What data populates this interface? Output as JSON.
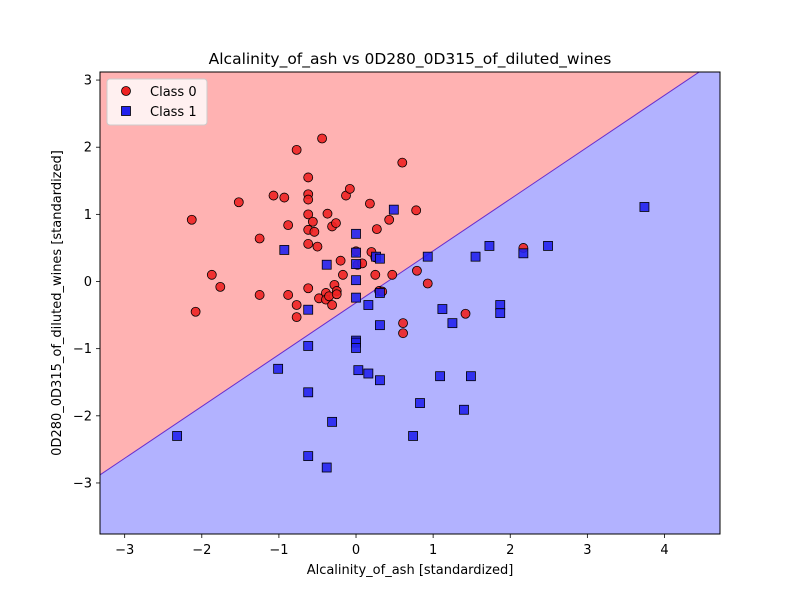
{
  "chart_data": {
    "type": "scatter",
    "title": "Alcalinity_of_ash vs 0D280_0D315_of_diluted_wines",
    "xlabel": "Alcalinity_of_ash [standardized]",
    "ylabel": "0D280_0D315_of_diluted_wines [standardized]",
    "xlim": [
      -3.32,
      4.72
    ],
    "ylim": [
      -3.76,
      3.12
    ],
    "x_ticks": [
      -3,
      -2,
      -1,
      0,
      1,
      2,
      3,
      4
    ],
    "y_ticks": [
      -3,
      -2,
      -1,
      0,
      1,
      2,
      3
    ],
    "x_tick_labels": [
      "−3",
      "−2",
      "−1",
      "0",
      "1",
      "2",
      "3",
      "4"
    ],
    "y_tick_labels": [
      "−3",
      "−2",
      "−1",
      "0",
      "1",
      "2",
      "3"
    ],
    "grid": false,
    "legend_position": "top-left",
    "decision_boundary": {
      "points": [
        [
          -3.32,
          -2.88
        ],
        [
          4.45,
          3.12
        ]
      ],
      "region_above": "Class 0",
      "region_below": "Class 1",
      "color_above": "#ffb2b2",
      "color_below": "#b2b2ff",
      "line_color": "#6a2ecc"
    },
    "series": [
      {
        "name": "Class 0",
        "marker": "circle",
        "color": "#ee2222",
        "edge_color": "#000000",
        "points": [
          [
            -2.13,
            0.92
          ],
          [
            -2.08,
            -0.45
          ],
          [
            -1.87,
            0.1
          ],
          [
            -1.76,
            -0.08
          ],
          [
            -1.52,
            1.18
          ],
          [
            -1.25,
            0.64
          ],
          [
            -1.25,
            -0.2
          ],
          [
            -1.07,
            1.28
          ],
          [
            -0.93,
            1.25
          ],
          [
            -0.88,
            0.84
          ],
          [
            -0.88,
            -0.2
          ],
          [
            -0.77,
            1.96
          ],
          [
            -0.77,
            -0.35
          ],
          [
            -0.77,
            -0.53
          ],
          [
            -0.62,
            1.55
          ],
          [
            -0.62,
            1.3
          ],
          [
            -0.62,
            1.22
          ],
          [
            -0.62,
            1.0
          ],
          [
            -0.62,
            0.77
          ],
          [
            -0.62,
            0.56
          ],
          [
            -0.62,
            -0.1
          ],
          [
            -0.56,
            0.89
          ],
          [
            -0.54,
            0.74
          ],
          [
            -0.5,
            0.52
          ],
          [
            -0.48,
            -0.25
          ],
          [
            -0.44,
            2.13
          ],
          [
            -0.39,
            -0.17
          ],
          [
            -0.39,
            -0.27
          ],
          [
            -0.37,
            1.01
          ],
          [
            -0.35,
            -0.22
          ],
          [
            -0.31,
            0.82
          ],
          [
            -0.31,
            -0.35
          ],
          [
            -0.28,
            -0.05
          ],
          [
            -0.26,
            0.87
          ],
          [
            -0.25,
            -0.14
          ],
          [
            -0.25,
            -0.19
          ],
          [
            -0.2,
            0.31
          ],
          [
            -0.17,
            0.1
          ],
          [
            -0.13,
            1.28
          ],
          [
            -0.08,
            1.38
          ],
          [
            0.0,
            0.45
          ],
          [
            0.02,
            0.25
          ],
          [
            0.08,
            0.27
          ],
          [
            0.18,
            1.16
          ],
          [
            0.2,
            0.44
          ],
          [
            0.25,
            0.36
          ],
          [
            0.25,
            0.1
          ],
          [
            0.27,
            0.78
          ],
          [
            0.3,
            -0.14
          ],
          [
            0.34,
            -0.15
          ],
          [
            0.43,
            0.92
          ],
          [
            0.47,
            0.1
          ],
          [
            0.6,
            1.77
          ],
          [
            0.61,
            -0.62
          ],
          [
            0.61,
            -0.77
          ],
          [
            0.78,
            1.06
          ],
          [
            0.79,
            0.16
          ],
          [
            0.93,
            -0.03
          ],
          [
            1.42,
            -0.48
          ],
          [
            2.17,
            0.5
          ]
        ]
      },
      {
        "name": "Class 1",
        "marker": "square",
        "color": "#2222ee",
        "edge_color": "#000000",
        "points": [
          [
            -2.32,
            -2.3
          ],
          [
            -1.01,
            -1.3
          ],
          [
            -0.93,
            0.47
          ],
          [
            -0.62,
            -0.42
          ],
          [
            -0.62,
            -0.96
          ],
          [
            -0.62,
            -1.65
          ],
          [
            -0.62,
            -2.6
          ],
          [
            -0.38,
            0.25
          ],
          [
            -0.38,
            -2.77
          ],
          [
            -0.31,
            -2.09
          ],
          [
            0.0,
            0.71
          ],
          [
            0.0,
            0.43
          ],
          [
            0.0,
            0.26
          ],
          [
            0.0,
            0.02
          ],
          [
            0.0,
            -0.24
          ],
          [
            0.0,
            -0.88
          ],
          [
            0.0,
            -0.91
          ],
          [
            0.0,
            -0.99
          ],
          [
            0.03,
            -1.32
          ],
          [
            0.16,
            -0.35
          ],
          [
            0.16,
            -1.37
          ],
          [
            0.26,
            0.37
          ],
          [
            0.31,
            0.34
          ],
          [
            0.31,
            -0.17
          ],
          [
            0.31,
            -0.65
          ],
          [
            0.31,
            -1.47
          ],
          [
            0.49,
            1.07
          ],
          [
            0.74,
            -2.3
          ],
          [
            0.83,
            -1.81
          ],
          [
            0.93,
            0.37
          ],
          [
            1.09,
            -1.41
          ],
          [
            1.12,
            -0.41
          ],
          [
            1.25,
            -0.62
          ],
          [
            1.4,
            -1.91
          ],
          [
            1.49,
            -1.41
          ],
          [
            1.55,
            0.37
          ],
          [
            1.73,
            0.53
          ],
          [
            1.87,
            -0.35
          ],
          [
            1.87,
            -0.47
          ],
          [
            2.17,
            0.42
          ],
          [
            2.49,
            0.53
          ],
          [
            3.74,
            1.11
          ]
        ]
      }
    ]
  }
}
